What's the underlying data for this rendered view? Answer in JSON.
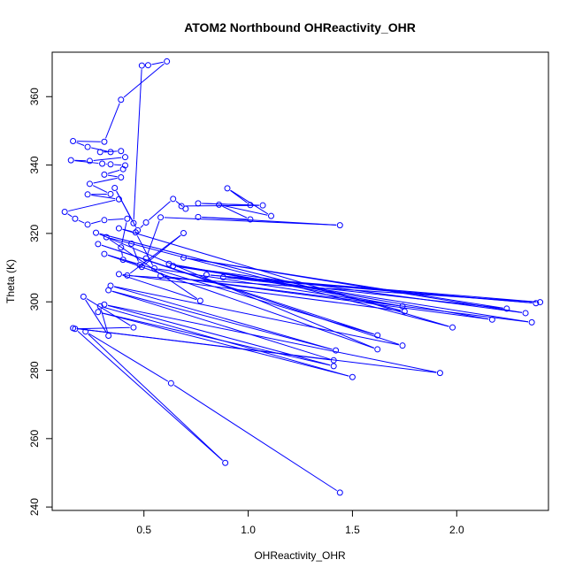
{
  "chart_data": {
    "type": "line",
    "title": "ATOM2 Northbound OHReactivity_OHR",
    "xlabel": "OHReactivity_OHR",
    "ylabel": "Theta (K)",
    "xlim": [
      0.06,
      2.44
    ],
    "ylim": [
      239,
      373
    ],
    "xticks": [
      0.5,
      1.0,
      1.5,
      2.0
    ],
    "xtick_labels": [
      "0.5",
      "1.0",
      "1.5",
      "2.0"
    ],
    "yticks": [
      240,
      260,
      280,
      300,
      320,
      340,
      360
    ],
    "ytick_labels": [
      "240",
      "260",
      "280",
      "300",
      "320",
      "340",
      "360"
    ],
    "grid": false,
    "series_color": "#0000ff",
    "series": [
      {
        "name": "OHReactivity_OHR",
        "points": [
          [
            1.44,
            244.2
          ],
          [
            0.63,
            276.2
          ],
          [
            0.22,
            291.3
          ],
          [
            0.89,
            252.9
          ],
          [
            0.17,
            292.1
          ],
          [
            0.45,
            292.5
          ],
          [
            0.21,
            301.5
          ],
          [
            0.33,
            290.1
          ],
          [
            0.29,
            298.7
          ],
          [
            1.5,
            278.0
          ],
          [
            0.28,
            297.0
          ],
          [
            1.41,
            281.2
          ],
          [
            0.31,
            299.2
          ],
          [
            1.92,
            279.2
          ],
          [
            0.16,
            292.3
          ],
          [
            1.41,
            282.9
          ],
          [
            0.33,
            303.4
          ],
          [
            1.42,
            285.8
          ],
          [
            0.34,
            304.7
          ],
          [
            1.74,
            287.2
          ],
          [
            0.28,
            316.9
          ],
          [
            1.62,
            290.2
          ],
          [
            0.31,
            314.0
          ],
          [
            1.62,
            286.1
          ],
          [
            0.27,
            320.2
          ],
          [
            1.75,
            297.2
          ],
          [
            0.38,
            308.1
          ],
          [
            0.77,
            300.3
          ],
          [
            0.32,
            318.9
          ],
          [
            1.98,
            292.5
          ],
          [
            0.38,
            321.5
          ],
          [
            0.46,
            320.3
          ],
          [
            0.55,
            309.8
          ],
          [
            1.74,
            298.7
          ],
          [
            0.62,
            311.1
          ],
          [
            2.17,
            294.8
          ],
          [
            0.58,
            307.6
          ],
          [
            2.36,
            294.0
          ],
          [
            0.64,
            310.5
          ],
          [
            2.33,
            296.7
          ],
          [
            0.69,
            312.9
          ],
          [
            2.24,
            298.0
          ],
          [
            0.88,
            307.2
          ],
          [
            2.38,
            299.6
          ],
          [
            0.8,
            307.9
          ],
          [
            2.4,
            299.9
          ],
          [
            0.42,
            307.7
          ],
          [
            0.69,
            320.1
          ],
          [
            0.49,
            310.2
          ],
          [
            0.51,
            312.7
          ],
          [
            0.58,
            324.7
          ],
          [
            1.44,
            322.4
          ],
          [
            0.76,
            324.8
          ],
          [
            1.01,
            324.1
          ],
          [
            0.86,
            328.4
          ],
          [
            1.11,
            325.1
          ],
          [
            0.9,
            333.2
          ],
          [
            1.01,
            328.3
          ],
          [
            0.76,
            328.8
          ],
          [
            1.07,
            328.2
          ],
          [
            0.68,
            328.0
          ],
          [
            0.7,
            327.2
          ],
          [
            0.64,
            330.1
          ],
          [
            0.51,
            323.2
          ],
          [
            0.47,
            320.9
          ],
          [
            0.36,
            333.3
          ],
          [
            0.45,
            323.0
          ],
          [
            0.49,
            369.1
          ],
          [
            0.52,
            369.2
          ],
          [
            0.61,
            370.3
          ],
          [
            0.39,
            359.1
          ],
          [
            0.31,
            346.8
          ],
          [
            0.16,
            347.0
          ],
          [
            0.23,
            345.3
          ],
          [
            0.34,
            343.8
          ],
          [
            0.29,
            343.8
          ],
          [
            0.39,
            344.1
          ],
          [
            0.41,
            342.3
          ],
          [
            0.24,
            341.2
          ],
          [
            0.15,
            341.4
          ],
          [
            0.3,
            340.4
          ],
          [
            0.34,
            340.2
          ],
          [
            0.41,
            339.9
          ],
          [
            0.4,
            338.8
          ],
          [
            0.31,
            337.2
          ],
          [
            0.39,
            336.4
          ],
          [
            0.24,
            334.5
          ],
          [
            0.34,
            331.5
          ],
          [
            0.23,
            331.4
          ],
          [
            0.38,
            330.0
          ],
          [
            0.12,
            326.3
          ],
          [
            0.17,
            324.3
          ],
          [
            0.23,
            322.6
          ],
          [
            0.31,
            323.9
          ],
          [
            0.42,
            324.3
          ],
          [
            0.39,
            315.9
          ],
          [
            0.4,
            312.3
          ],
          [
            0.48,
            310.8
          ],
          [
            0.44,
            317.0
          ]
        ]
      }
    ]
  }
}
